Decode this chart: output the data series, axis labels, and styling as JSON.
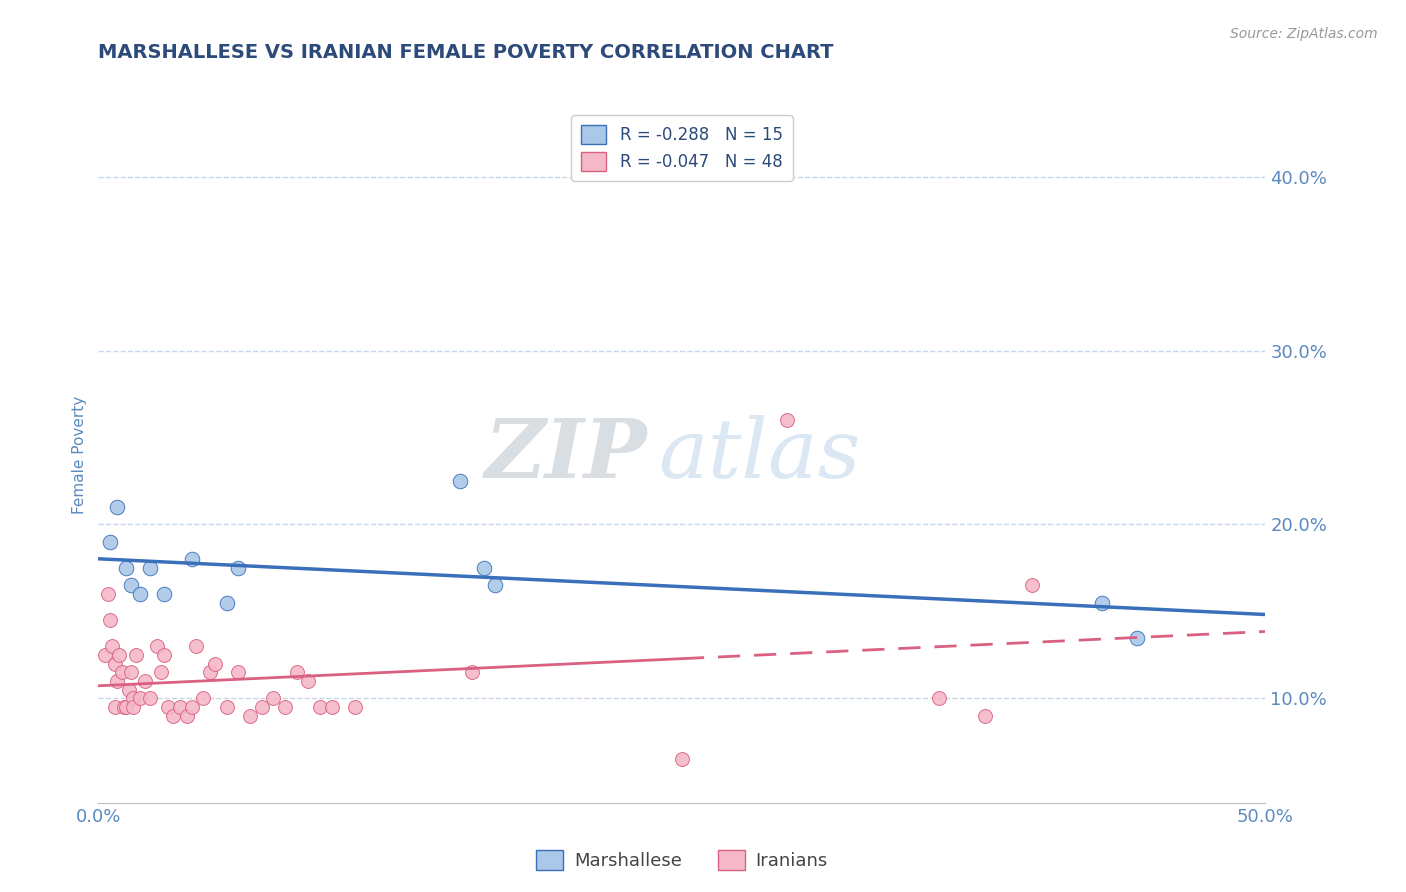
{
  "title": "MARSHALLESE VS IRANIAN FEMALE POVERTY CORRELATION CHART",
  "source": "Source: ZipAtlas.com",
  "ylabel": "Female Poverty",
  "ytick_labels": [
    "10.0%",
    "20.0%",
    "30.0%",
    "40.0%"
  ],
  "ytick_values": [
    0.1,
    0.2,
    0.3,
    0.4
  ],
  "xlim": [
    0.0,
    0.5
  ],
  "ylim": [
    0.04,
    0.44
  ],
  "legend_entries": [
    {
      "label": "R = -0.288   N = 15",
      "color": "#aac8e8"
    },
    {
      "label": "R = -0.047   N = 48",
      "color": "#f4b8c8"
    }
  ],
  "legend_bottom": [
    "Marshallese",
    "Iranians"
  ],
  "blue_color": "#3a6fba",
  "pink_color": "#d96080",
  "blue_marker_color": "#aac8e8",
  "pink_marker_color": "#f4b8c8",
  "marshallese_x": [
    0.005,
    0.008,
    0.012,
    0.014,
    0.018,
    0.022,
    0.028,
    0.055,
    0.06,
    0.155,
    0.165,
    0.17,
    0.43,
    0.445,
    0.04
  ],
  "marshallese_y": [
    0.19,
    0.21,
    0.175,
    0.165,
    0.16,
    0.175,
    0.16,
    0.155,
    0.175,
    0.225,
    0.175,
    0.165,
    0.155,
    0.135,
    0.18
  ],
  "iranians_x": [
    0.003,
    0.004,
    0.005,
    0.006,
    0.007,
    0.007,
    0.008,
    0.009,
    0.01,
    0.011,
    0.012,
    0.013,
    0.014,
    0.015,
    0.015,
    0.016,
    0.018,
    0.02,
    0.022,
    0.025,
    0.027,
    0.028,
    0.03,
    0.032,
    0.035,
    0.038,
    0.04,
    0.042,
    0.045,
    0.048,
    0.05,
    0.055,
    0.06,
    0.065,
    0.07,
    0.075,
    0.08,
    0.085,
    0.09,
    0.095,
    0.1,
    0.11,
    0.16,
    0.25,
    0.295,
    0.36,
    0.38,
    0.4
  ],
  "iranians_y": [
    0.125,
    0.16,
    0.145,
    0.13,
    0.12,
    0.095,
    0.11,
    0.125,
    0.115,
    0.095,
    0.095,
    0.105,
    0.115,
    0.1,
    0.095,
    0.125,
    0.1,
    0.11,
    0.1,
    0.13,
    0.115,
    0.125,
    0.095,
    0.09,
    0.095,
    0.09,
    0.095,
    0.13,
    0.1,
    0.115,
    0.12,
    0.095,
    0.115,
    0.09,
    0.095,
    0.1,
    0.095,
    0.115,
    0.11,
    0.095,
    0.095,
    0.095,
    0.115,
    0.065,
    0.26,
    0.1,
    0.09,
    0.165
  ],
  "watermark_zip": "ZIP",
  "watermark_atlas": "atlas",
  "background_color": "#ffffff",
  "grid_color": "#c8d8ea",
  "title_color": "#2c4a7a",
  "tick_color": "#5a8ac0"
}
